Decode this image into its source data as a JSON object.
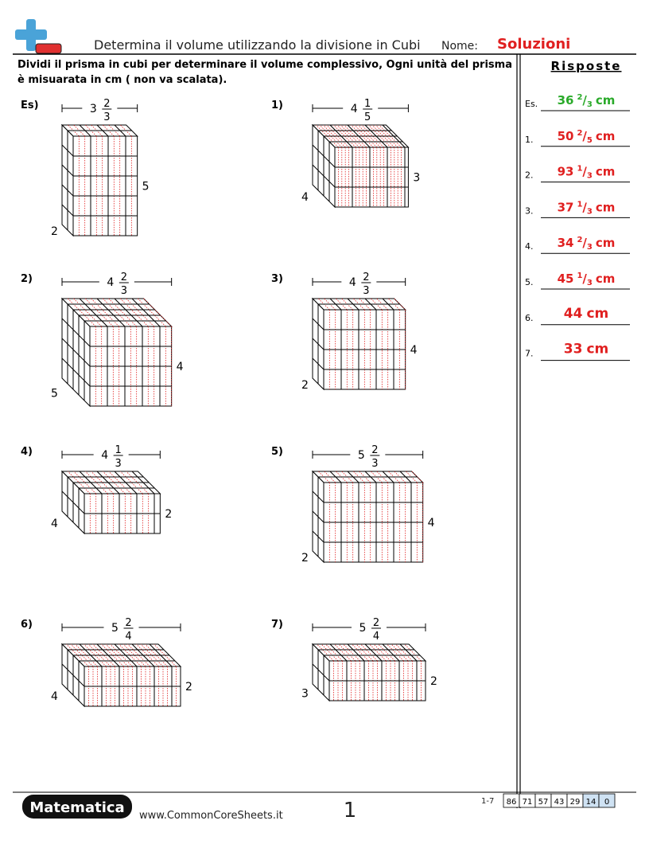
{
  "header": {
    "title": "Determina il volume utilizzando la divisione in Cubi",
    "name_label": "Nome:",
    "name_value": "Soluzioni"
  },
  "instructions": "Dividi il prisma in cubi per determinare il volume complessivo, Ogni unità del prisma è misuarata in cm ( non va scalata).",
  "problems": [
    {
      "label": "Es)",
      "whole": "3",
      "numerator": "2",
      "denominator": "3",
      "height": "5",
      "depth": "2"
    },
    {
      "label": "1)",
      "whole": "4",
      "numerator": "1",
      "denominator": "5",
      "height": "3",
      "depth": "4"
    },
    {
      "label": "2)",
      "whole": "4",
      "numerator": "2",
      "denominator": "3",
      "height": "4",
      "depth": "5"
    },
    {
      "label": "3)",
      "whole": "4",
      "numerator": "2",
      "denominator": "3",
      "height": "4",
      "depth": "2"
    },
    {
      "label": "4)",
      "whole": "4",
      "numerator": "1",
      "denominator": "3",
      "height": "2",
      "depth": "4"
    },
    {
      "label": "5)",
      "whole": "5",
      "numerator": "2",
      "denominator": "3",
      "height": "4",
      "depth": "2"
    },
    {
      "label": "6)",
      "whole": "5",
      "numerator": "2",
      "denominator": "4",
      "height": "2",
      "depth": "4"
    },
    {
      "label": "7)",
      "whole": "5",
      "numerator": "2",
      "denominator": "4",
      "height": "2",
      "depth": "3"
    }
  ],
  "answers": {
    "title": "Risposte",
    "items": [
      {
        "label": "Es.",
        "whole": "36",
        "numerator": "2",
        "slash": "/",
        "denominator": "3",
        "unit": "cm"
      },
      {
        "label": "1.",
        "whole": "50",
        "numerator": "2",
        "slash": "/",
        "denominator": "5",
        "unit": "cm"
      },
      {
        "label": "2.",
        "whole": "93",
        "numerator": "1",
        "slash": "/",
        "denominator": "3",
        "unit": "cm"
      },
      {
        "label": "3.",
        "whole": "37",
        "numerator": "1",
        "slash": "/",
        "denominator": "3",
        "unit": "cm"
      },
      {
        "label": "4.",
        "whole": "34",
        "numerator": "2",
        "slash": "/",
        "denominator": "3",
        "unit": "cm"
      },
      {
        "label": "5.",
        "whole": "45",
        "numerator": "1",
        "slash": "/",
        "denominator": "3",
        "unit": "cm"
      },
      {
        "label": "6.",
        "whole": "44",
        "unit": "cm"
      },
      {
        "label": "7.",
        "whole": "33",
        "unit": "cm"
      }
    ]
  },
  "footer": {
    "brand": "Matematica",
    "url": "www.CommonCoreSheets.it",
    "page": "1",
    "range": "1-7",
    "scores": [
      "86",
      "71",
      "57",
      "43",
      "29",
      "14",
      "0"
    ]
  }
}
